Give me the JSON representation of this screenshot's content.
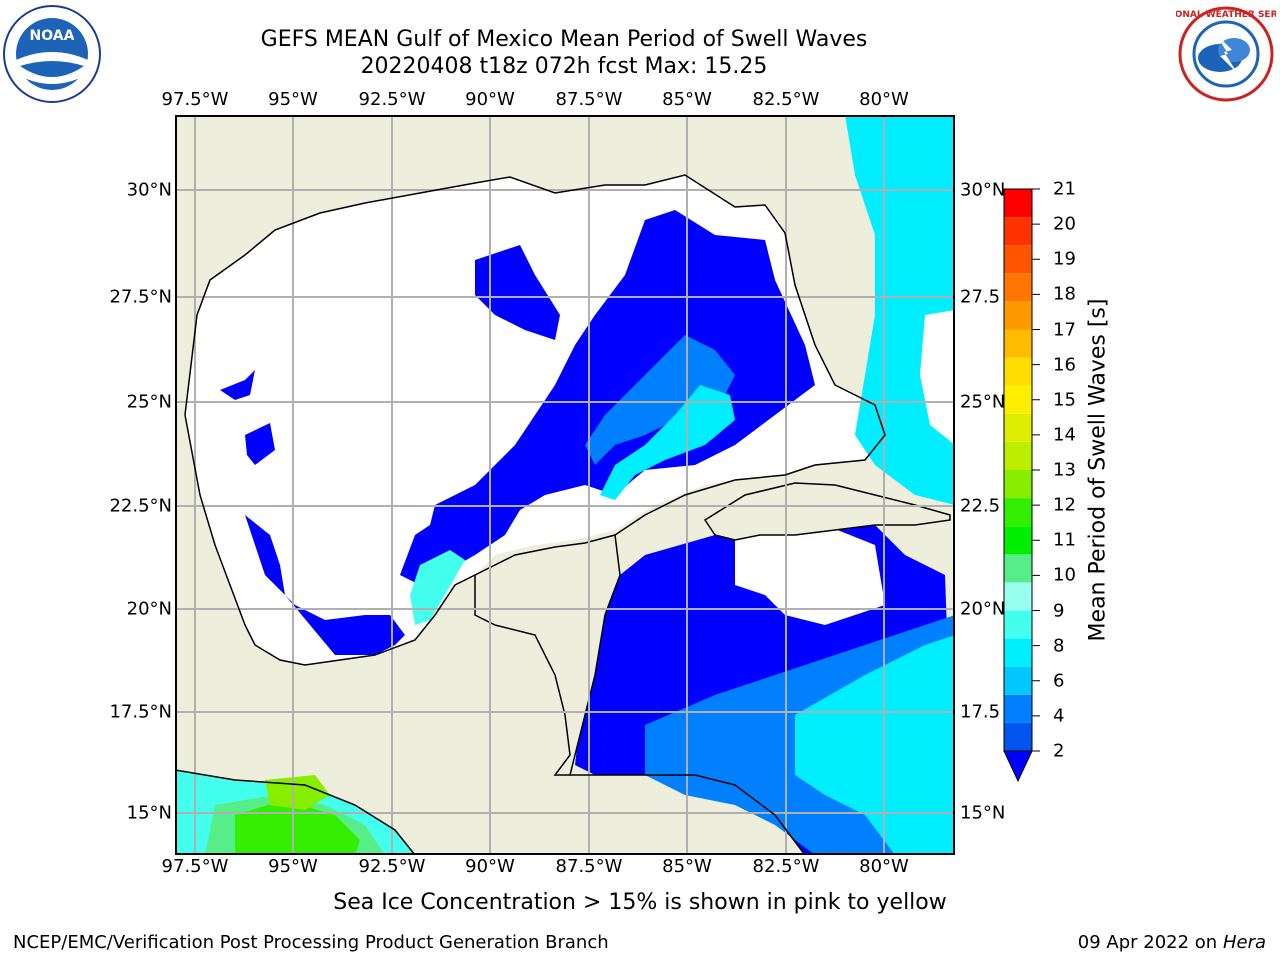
{
  "title": {
    "line1": "GEFS MEAN Gulf of Mexico Mean Period of Swell Waves",
    "line2": "20220408 t18z 072h fcst   Max: 15.25"
  },
  "axes": {
    "lon_ticks": [
      "97.5°W",
      "95°W",
      "92.5°W",
      "90°W",
      "87.5°W",
      "85°W",
      "82.5°W",
      "80°W"
    ],
    "lat_ticks_left": [
      "30°N",
      "27.5°N",
      "25°N",
      "22.5°N",
      "20°N",
      "17.5°N",
      "15°N"
    ],
    "lat_ticks_right": [
      "30°N",
      "27.5",
      "25°N",
      "22.5",
      "20°N",
      "17.5",
      "15°N"
    ],
    "lon_range": [
      -98.0,
      -78.0
    ],
    "lat_range": [
      14.0,
      31.8
    ],
    "gridlines": true
  },
  "colorbar": {
    "label": "Mean Period of Swell Waves [s]",
    "ticks": [
      "2",
      "4",
      "6",
      "8",
      "9",
      "10",
      "11",
      "12",
      "13",
      "14",
      "15",
      "16",
      "17",
      "18",
      "19",
      "20",
      "21"
    ],
    "colors": [
      "#0000ff",
      "#0055ee",
      "#0080ff",
      "#00c8ff",
      "#00eeff",
      "#44ffee",
      "#99ffee",
      "#55ee88",
      "#00ee00",
      "#33ee00",
      "#88ee00",
      "#bbee00",
      "#ddee00",
      "#ffee00",
      "#ffdd00",
      "#ffbb00",
      "#ff9900",
      "#ff7700",
      "#ff5500",
      "#ff3300",
      "#ff0000"
    ],
    "extend": "min"
  },
  "colors": {
    "land": "#eeeedc",
    "ocean_masked": "#ffffff",
    "grid": "#b0b0b0"
  },
  "note": "Sea Ice Concentration > 15% is shown in pink to yellow",
  "footer": {
    "left": "NCEP/EMC/Verification Post Processing Product Generation Branch",
    "date": "09 Apr 2022 on ",
    "machine": "Hera"
  },
  "logos": {
    "left": "noaa-logo",
    "left_text": "NOAA",
    "right": "nws-logo",
    "right_text": "NATIONAL WEATHER SERVICE"
  }
}
